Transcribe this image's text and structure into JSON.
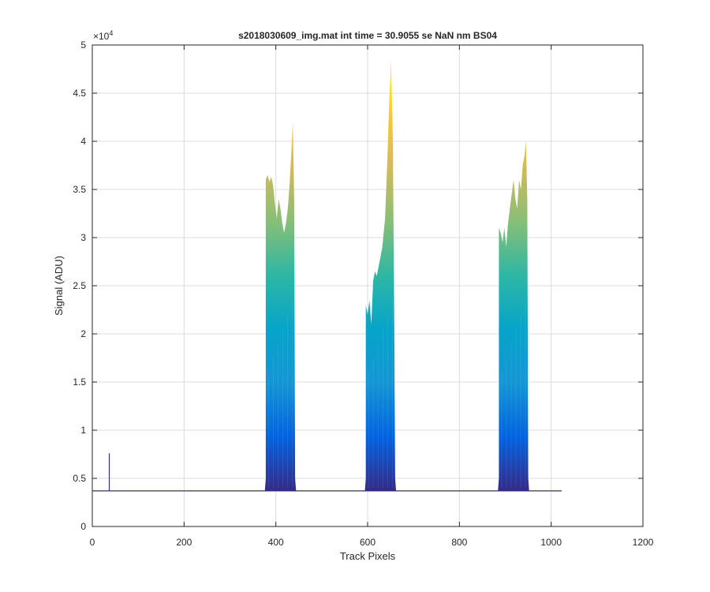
{
  "chart_data": {
    "type": "area",
    "title": "s2018030609_img.mat int time = 30.9055 se  NaN nm BS04",
    "xlabel": "Track Pixels",
    "ylabel": "Signal (ADU)",
    "y_exponent_label": "×10",
    "y_exponent_power": "4",
    "xlim": [
      0,
      1200
    ],
    "ylim": [
      0,
      50000
    ],
    "x_ticks": [
      "0",
      "200",
      "400",
      "600",
      "800",
      "1000",
      "1200"
    ],
    "y_ticks": [
      "0",
      "0.5",
      "1",
      "1.5",
      "2",
      "2.5",
      "3",
      "3.5",
      "4",
      "4.5",
      "5"
    ],
    "grid": true,
    "colormap": [
      "#352a87",
      "#0363e1",
      "#1496d4",
      "#06a4ca",
      "#2eb7a4",
      "#87bf77",
      "#d1bb59",
      "#fec832",
      "#f9fb0e"
    ],
    "baseline": 3700,
    "spike": {
      "x": 37,
      "peak": 7600
    },
    "peaks": [
      {
        "x_start": 378,
        "x_end": 442,
        "envelope": [
          [
            378,
            36000
          ],
          [
            382,
            36500
          ],
          [
            386,
            35800
          ],
          [
            390,
            36300
          ],
          [
            394,
            35400
          ],
          [
            398,
            33500
          ],
          [
            402,
            32000
          ],
          [
            406,
            34000
          ],
          [
            410,
            33000
          ],
          [
            414,
            31500
          ],
          [
            418,
            30500
          ],
          [
            422,
            31500
          ],
          [
            426,
            33000
          ],
          [
            430,
            35500
          ],
          [
            434,
            39000
          ],
          [
            437,
            42000
          ],
          [
            440,
            34000
          ],
          [
            442,
            5000
          ]
        ]
      },
      {
        "x_start": 596,
        "x_end": 660,
        "envelope": [
          [
            596,
            23000
          ],
          [
            600,
            22000
          ],
          [
            604,
            23500
          ],
          [
            608,
            21000
          ],
          [
            612,
            25500
          ],
          [
            616,
            26500
          ],
          [
            620,
            26000
          ],
          [
            626,
            27500
          ],
          [
            632,
            29000
          ],
          [
            638,
            32000
          ],
          [
            643,
            38000
          ],
          [
            647,
            44000
          ],
          [
            651,
            48500
          ],
          [
            655,
            40000
          ],
          [
            658,
            22000
          ],
          [
            660,
            5000
          ]
        ]
      },
      {
        "x_start": 886,
        "x_end": 950,
        "envelope": [
          [
            886,
            31000
          ],
          [
            890,
            30500
          ],
          [
            894,
            29500
          ],
          [
            898,
            31000
          ],
          [
            902,
            29000
          ],
          [
            906,
            31500
          ],
          [
            910,
            33000
          ],
          [
            914,
            34500
          ],
          [
            918,
            36000
          ],
          [
            922,
            34000
          ],
          [
            926,
            33000
          ],
          [
            930,
            36000
          ],
          [
            934,
            35000
          ],
          [
            938,
            37500
          ],
          [
            942,
            38500
          ],
          [
            945,
            40000
          ],
          [
            948,
            34000
          ],
          [
            950,
            5000
          ]
        ]
      }
    ],
    "data_x_end": 1023
  }
}
